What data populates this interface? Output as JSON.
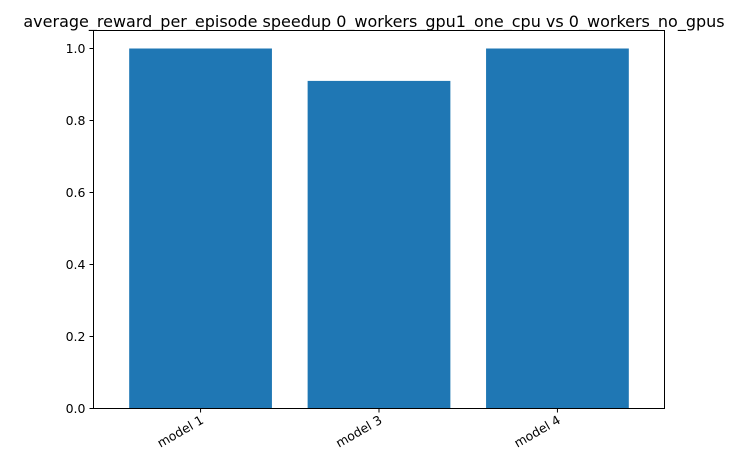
{
  "chart_data": {
    "type": "bar",
    "title": "average_reward_per_episode speedup 0_workers_gpu1_one_cpu vs 0_workers_no_gpus",
    "xlabel": "",
    "ylabel": "",
    "categories": [
      "model 1",
      "model 3",
      "model 4"
    ],
    "values": [
      1.0,
      0.91,
      1.0
    ],
    "ylim": [
      0,
      1.05
    ],
    "yticks": [
      0.0,
      0.2,
      0.4,
      0.6,
      0.8,
      1.0
    ],
    "ytick_labels": [
      "0.0",
      "0.2",
      "0.4",
      "0.6",
      "0.8",
      "1.0"
    ],
    "bar_color": "#1f77b4",
    "grid": false,
    "legend": "none"
  }
}
